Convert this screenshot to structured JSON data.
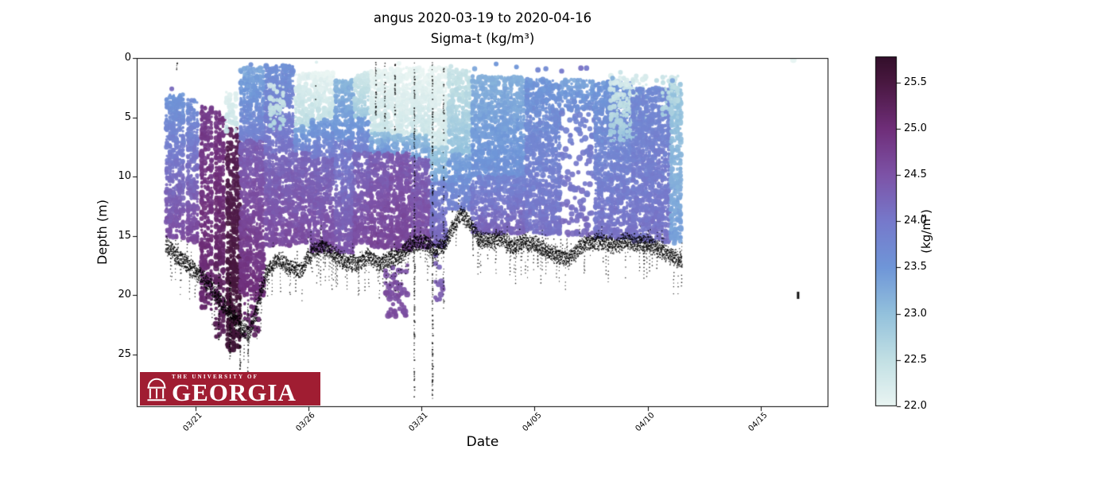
{
  "figure": {
    "title": "angus 2020-03-19 to 2020-04-16",
    "subtitle": "Sigma-t (kg/m³)"
  },
  "axes": {
    "xlabel": "Date",
    "ylabel": "Depth (m)"
  },
  "logo": {
    "top_text": "THE UNIVERSITY OF",
    "main_text": "GEORGIA",
    "bg_color": "#a01d32",
    "text_color": "#ffffff"
  },
  "chart_data": {
    "type": "scatter",
    "title": "angus 2020-03-19 to 2020-04-16",
    "subtitle": "Sigma-t (kg/m³)",
    "xlabel": "Date",
    "ylabel": "Depth (m)",
    "colorbar_label": "(kg/m³)",
    "x_axis": {
      "start_date": "2020-03-19",
      "range_days": [
        -0.6,
        30.0
      ],
      "ticks": [
        {
          "day": 2,
          "label": "03/21"
        },
        {
          "day": 7,
          "label": "03/26"
        },
        {
          "day": 12,
          "label": "03/31"
        },
        {
          "day": 17,
          "label": "04/05"
        },
        {
          "day": 22,
          "label": "04/10"
        },
        {
          "day": 27,
          "label": "04/15"
        }
      ]
    },
    "y_axis": {
      "range": [
        0,
        29.42
      ],
      "inverted": true,
      "ticks": [
        {
          "v": 0,
          "label": "0"
        },
        {
          "v": 5,
          "label": "5"
        },
        {
          "v": 10,
          "label": "10"
        },
        {
          "v": 15,
          "label": "15"
        },
        {
          "v": 20,
          "label": "20"
        },
        {
          "v": 25,
          "label": "25"
        }
      ]
    },
    "color_axis": {
      "min": 22.0,
      "max": 25.78,
      "ticks": [
        {
          "v": 25.5,
          "label": "25.5"
        },
        {
          "v": 25.0,
          "label": "25.0"
        },
        {
          "v": 24.5,
          "label": "24.5"
        },
        {
          "v": 24.0,
          "label": "24.0"
        },
        {
          "v": 23.5,
          "label": "23.5"
        },
        {
          "v": 23.0,
          "label": "23.0"
        },
        {
          "v": 22.5,
          "label": "22.5"
        },
        {
          "v": 22.0,
          "label": "22.0"
        }
      ],
      "colormap_stops": [
        [
          22.0,
          "#eaf5f3"
        ],
        [
          22.5,
          "#c2e0e4"
        ],
        [
          23.0,
          "#93c1dc"
        ],
        [
          23.5,
          "#6f96d8"
        ],
        [
          24.0,
          "#7679cb"
        ],
        [
          24.5,
          "#7d53a7"
        ],
        [
          25.0,
          "#6f2e79"
        ],
        [
          25.5,
          "#491840"
        ],
        [
          25.78,
          "#330f2b"
        ]
      ]
    },
    "columns_fields": [
      "day_start",
      "day_end",
      "depth_top_m",
      "depth_bottom_m",
      "sigma_t_top",
      "sigma_t_bottom",
      "relative_density"
    ],
    "columns": [
      [
        0.66,
        1.51,
        3.0,
        15.2,
        23.5,
        24.6,
        0.95
      ],
      [
        1.61,
        2.14,
        3.5,
        15.5,
        23.6,
        24.7,
        0.95
      ],
      [
        2.21,
        2.77,
        4.0,
        21.2,
        24.8,
        25.1,
        0.7
      ],
      [
        2.84,
        3.3,
        4.5,
        23.6,
        24.9,
        25.3,
        0.65
      ],
      [
        3.37,
        4.01,
        5.8,
        24.6,
        25.3,
        25.65,
        0.75
      ],
      [
        3.3,
        3.85,
        2.8,
        6.2,
        22.1,
        22.5,
        0.5
      ],
      [
        3.95,
        5.06,
        0.8,
        7.0,
        23.3,
        23.9,
        1.0
      ],
      [
        3.95,
        5.06,
        7.0,
        20.0,
        24.3,
        25.0,
        1.0
      ],
      [
        4.1,
        4.85,
        20.0,
        23.4,
        25.0,
        25.2,
        0.3
      ],
      [
        5.06,
        6.37,
        0.6,
        8.0,
        23.6,
        24.1,
        1.0
      ],
      [
        5.06,
        6.37,
        8.0,
        15.8,
        24.2,
        24.6,
        1.0
      ],
      [
        5.25,
        5.95,
        2.3,
        6.0,
        22.3,
        22.7,
        0.45
      ],
      [
        6.37,
        7.1,
        1.3,
        5.8,
        22.1,
        22.6,
        0.85
      ],
      [
        6.37,
        7.1,
        5.8,
        8.0,
        23.3,
        23.9,
        0.9
      ],
      [
        6.37,
        7.1,
        8.0,
        15.6,
        24.2,
        24.6,
        1.0
      ],
      [
        7.1,
        8.15,
        1.2,
        5.2,
        22.0,
        22.5,
        0.9
      ],
      [
        7.1,
        8.15,
        5.2,
        8.5,
        23.4,
        24.0,
        0.9
      ],
      [
        7.1,
        8.15,
        8.5,
        16.3,
        24.2,
        24.6,
        1.0
      ],
      [
        8.15,
        9.0,
        1.8,
        7.0,
        23.1,
        23.6,
        1.0
      ],
      [
        8.15,
        9.0,
        7.0,
        16.5,
        23.9,
        24.5,
        1.0
      ],
      [
        9.0,
        9.71,
        1.2,
        5.0,
        22.3,
        22.9,
        0.85
      ],
      [
        9.0,
        9.71,
        5.0,
        8.0,
        23.4,
        23.9,
        0.9
      ],
      [
        9.0,
        9.71,
        8.0,
        15.6,
        24.2,
        24.6,
        1.0
      ],
      [
        9.71,
        10.6,
        1.0,
        6.3,
        22.0,
        22.4,
        0.9
      ],
      [
        9.71,
        10.6,
        6.3,
        8.0,
        23.0,
        23.6,
        0.85
      ],
      [
        9.71,
        10.6,
        8.0,
        16.0,
        24.3,
        24.7,
        1.0
      ],
      [
        10.6,
        11.55,
        0.8,
        6.5,
        22.0,
        22.3,
        0.95
      ],
      [
        10.6,
        11.55,
        6.5,
        8.0,
        23.0,
        23.5,
        0.85
      ],
      [
        10.6,
        11.55,
        8.0,
        16.2,
        24.4,
        24.7,
        1.0
      ],
      [
        10.4,
        11.45,
        17.3,
        21.8,
        24.5,
        24.6,
        0.22
      ],
      [
        11.55,
        12.4,
        0.8,
        6.5,
        22.0,
        22.4,
        0.95
      ],
      [
        11.55,
        12.4,
        6.5,
        8.5,
        23.0,
        23.4,
        0.85
      ],
      [
        11.55,
        12.4,
        8.5,
        16.0,
        24.3,
        24.6,
        1.0
      ],
      [
        12.4,
        13.15,
        0.8,
        7.5,
        22.0,
        22.3,
        0.95
      ],
      [
        12.4,
        13.15,
        7.5,
        10.5,
        22.8,
        23.4,
        0.9
      ],
      [
        12.4,
        13.15,
        10.5,
        16.0,
        23.8,
        24.3,
        0.95
      ],
      [
        12.55,
        12.95,
        16.5,
        21.0,
        24.3,
        24.4,
        0.14
      ],
      [
        13.15,
        14.2,
        1.0,
        8.0,
        22.4,
        23.0,
        0.95
      ],
      [
        13.15,
        14.2,
        8.0,
        12.8,
        23.3,
        23.9,
        0.9
      ],
      [
        14.2,
        16.6,
        1.5,
        10.0,
        23.2,
        23.6,
        0.95
      ],
      [
        14.2,
        16.6,
        10.0,
        14.8,
        23.8,
        24.3,
        0.9
      ],
      [
        16.6,
        18.16,
        1.8,
        14.8,
        23.5,
        24.1,
        0.95
      ],
      [
        18.16,
        19.64,
        1.8,
        4.5,
        23.3,
        23.7,
        0.7
      ],
      [
        18.16,
        19.64,
        4.5,
        15.0,
        23.8,
        24.2,
        0.14
      ],
      [
        19.64,
        21.3,
        2.0,
        15.2,
        23.5,
        24.1,
        1.0
      ],
      [
        20.3,
        22.0,
        1.5,
        7.0,
        22.2,
        22.9,
        0.45
      ],
      [
        21.3,
        23.0,
        2.5,
        15.6,
        23.7,
        24.1,
        1.0
      ],
      [
        23.0,
        23.52,
        2.0,
        15.6,
        22.9,
        23.4,
        0.9
      ],
      [
        22.6,
        23.4,
        1.5,
        5.0,
        22.4,
        22.8,
        0.4
      ]
    ],
    "stray_points_fields": [
      "day",
      "depth_m",
      "sigma_t",
      "radius_px"
    ],
    "stray_points": [
      [
        0.95,
        2.6,
        24.2,
        3
      ],
      [
        4.45,
        0.55,
        23.6,
        3
      ],
      [
        7.35,
        0.35,
        22.2,
        2
      ],
      [
        11.0,
        0.45,
        22.0,
        3
      ],
      [
        13.3,
        0.7,
        22.4,
        3
      ],
      [
        14.35,
        0.9,
        23.3,
        3.2
      ],
      [
        15.3,
        0.5,
        23.5,
        3
      ],
      [
        16.2,
        0.75,
        23.5,
        3
      ],
      [
        17.15,
        1.0,
        23.8,
        3.4
      ],
      [
        17.5,
        0.9,
        23.7,
        3.2
      ],
      [
        18.2,
        1.1,
        24.0,
        3.2
      ],
      [
        19.05,
        0.85,
        24.1,
        3.4
      ],
      [
        19.3,
        0.85,
        24.0,
        3.4
      ],
      [
        20.05,
        2.1,
        23.4,
        3.2
      ],
      [
        20.45,
        1.7,
        23.2,
        3
      ],
      [
        20.8,
        1.2,
        22.4,
        3
      ],
      [
        21.5,
        1.5,
        22.3,
        3
      ],
      [
        22.4,
        1.9,
        22.6,
        3
      ],
      [
        23.1,
        1.9,
        23.3,
        3.2
      ],
      [
        28.45,
        0.15,
        22.05,
        4
      ]
    ],
    "seafloor_line_fields": [
      "day",
      "depth_m"
    ],
    "seafloor_line": [
      [
        0.66,
        15.3
      ],
      [
        1.1,
        16.3
      ],
      [
        1.6,
        17.0
      ],
      [
        2.1,
        17.8
      ],
      [
        2.6,
        18.8
      ],
      [
        3.1,
        20.3
      ],
      [
        3.6,
        21.3
      ],
      [
        4.0,
        22.3
      ],
      [
        4.35,
        23.0
      ],
      [
        4.7,
        20.8
      ],
      [
        5.1,
        17.8
      ],
      [
        5.6,
        16.6
      ],
      [
        6.1,
        17.3
      ],
      [
        6.6,
        17.6
      ],
      [
        7.1,
        16.1
      ],
      [
        7.6,
        15.6
      ],
      [
        8.1,
        16.2
      ],
      [
        8.6,
        16.8
      ],
      [
        9.1,
        17.0
      ],
      [
        9.6,
        16.3
      ],
      [
        10.1,
        17.0
      ],
      [
        10.6,
        16.6
      ],
      [
        11.1,
        16.1
      ],
      [
        11.6,
        15.4
      ],
      [
        12.1,
        15.1
      ],
      [
        12.6,
        15.9
      ],
      [
        13.0,
        15.4
      ],
      [
        13.4,
        13.8
      ],
      [
        13.76,
        12.7
      ],
      [
        14.1,
        13.6
      ],
      [
        14.5,
        14.9
      ],
      [
        15.0,
        15.1
      ],
      [
        15.5,
        14.8
      ],
      [
        16.0,
        15.6
      ],
      [
        16.5,
        15.1
      ],
      [
        17.0,
        15.4
      ],
      [
        17.5,
        15.9
      ],
      [
        18.0,
        16.3
      ],
      [
        18.5,
        16.6
      ],
      [
        19.0,
        15.6
      ],
      [
        19.5,
        15.2
      ],
      [
        20.0,
        15.1
      ],
      [
        20.5,
        15.6
      ],
      [
        21.0,
        15.1
      ],
      [
        21.5,
        15.4
      ],
      [
        22.0,
        15.3
      ],
      [
        22.5,
        15.8
      ],
      [
        23.0,
        16.3
      ],
      [
        23.5,
        16.8
      ]
    ],
    "dotted_track_fields": [
      "day",
      "depth_top_m",
      "depth_bottom_m",
      "density"
    ],
    "dotted_tracks": [
      [
        1.15,
        0.3,
        1.6,
        0.5
      ],
      [
        3.0,
        17.0,
        24.0,
        0.5
      ],
      [
        3.5,
        18.0,
        26.0,
        0.5
      ],
      [
        3.95,
        19.5,
        27.0,
        0.55
      ],
      [
        4.3,
        20.5,
        27.5,
        0.55
      ],
      [
        7.3,
        0.3,
        4.0,
        0.3
      ],
      [
        9.95,
        0.3,
        5.0,
        0.45
      ],
      [
        10.35,
        0.3,
        6.5,
        0.4
      ],
      [
        10.8,
        0.4,
        6.0,
        0.4
      ],
      [
        11.66,
        0.3,
        28.6,
        0.6
      ],
      [
        12.46,
        0.3,
        28.6,
        0.6
      ],
      [
        12.95,
        0.5,
        21.0,
        0.4
      ]
    ],
    "isolated_black_mark": {
      "day": 28.66,
      "depth_m": 19.7
    }
  }
}
